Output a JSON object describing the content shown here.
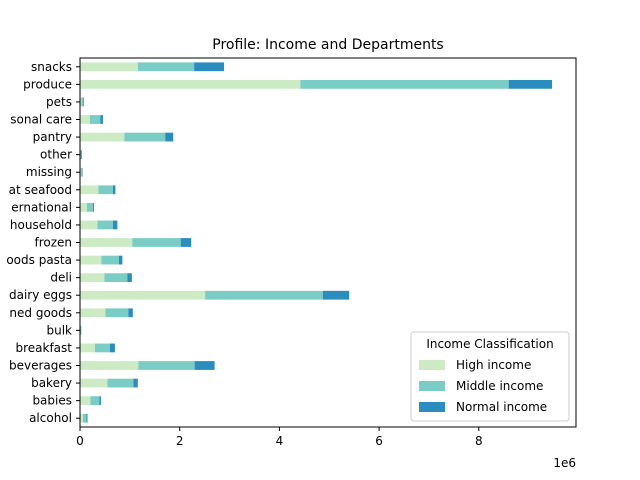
{
  "chart_data": {
    "type": "bar",
    "orientation": "horizontal",
    "stacked": true,
    "title": "Profile: Income and Departments",
    "xlabel": "",
    "ylabel": "",
    "x_scale_label": "1e6",
    "xlim": [
      0,
      9.95
    ],
    "x_ticks": [
      0,
      2,
      4,
      6,
      8
    ],
    "categories": [
      "alcohol",
      "babies",
      "bakery",
      "beverages",
      "breakfast",
      "bulk",
      "canned goods",
      "dairy eggs",
      "deli",
      "dry goods pasta",
      "frozen",
      "household",
      "international",
      "meat seafood",
      "missing",
      "other",
      "pantry",
      "personal care",
      "pets",
      "produce",
      "snacks"
    ],
    "category_labels": [
      "alcohol",
      "babies",
      "bakery",
      "beverages",
      "breakfast",
      "bulk",
      "ned goods",
      "dairy eggs",
      "deli",
      "oods pasta",
      "frozen",
      "household",
      "ernational",
      "at seafood",
      "missing",
      "other",
      "pantry",
      "sonal care",
      "pets",
      "produce",
      "snacks"
    ],
    "series": [
      {
        "name": "High income",
        "color": "#ccebc5",
        "values": [
          0.06,
          0.21,
          0.55,
          1.17,
          0.3,
          0.01,
          0.51,
          2.51,
          0.49,
          0.43,
          1.05,
          0.35,
          0.14,
          0.37,
          0.02,
          0.01,
          0.89,
          0.2,
          0.03,
          4.42,
          1.16
        ]
      },
      {
        "name": "Middle income",
        "color": "#7bccc4",
        "values": [
          0.07,
          0.18,
          0.52,
          1.13,
          0.3,
          0.02,
          0.46,
          2.36,
          0.46,
          0.35,
          0.97,
          0.31,
          0.12,
          0.29,
          0.02,
          0.02,
          0.82,
          0.21,
          0.04,
          4.18,
          1.13
        ]
      },
      {
        "name": "Normal income",
        "color": "#2b8cbe",
        "values": [
          0.02,
          0.03,
          0.09,
          0.4,
          0.1,
          0.0,
          0.09,
          0.53,
          0.09,
          0.07,
          0.21,
          0.09,
          0.02,
          0.05,
          0.01,
          0.01,
          0.16,
          0.05,
          0.01,
          0.87,
          0.6
        ]
      }
    ],
    "grid": false,
    "legend": {
      "title": "Income Classification",
      "placement": "lower-right"
    }
  }
}
